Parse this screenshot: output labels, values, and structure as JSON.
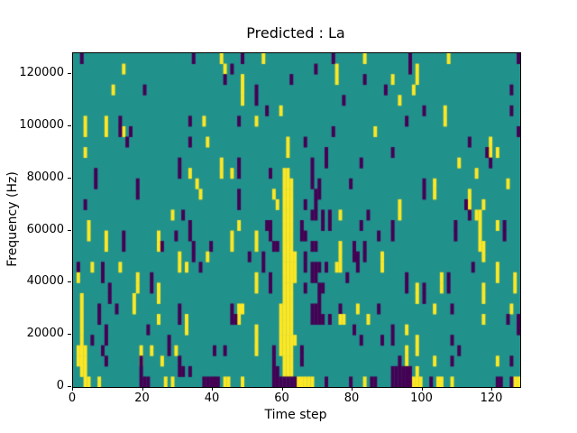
{
  "title": "Predicted : La",
  "chart_data": {
    "type": "heatmap",
    "title": "Predicted : La",
    "xlabel": "Time step",
    "ylabel": "Frequency (Hz)",
    "x_range": [
      0,
      128
    ],
    "y_range": [
      0,
      128000
    ],
    "x_ticks": [
      0,
      20,
      40,
      60,
      80,
      100,
      120
    ],
    "x_tick_labels": [
      "0",
      "20",
      "40",
      "60",
      "80",
      "100",
      "120"
    ],
    "y_ticks": [
      0,
      20000,
      40000,
      60000,
      80000,
      100000,
      120000
    ],
    "y_tick_labels": [
      "0",
      "20000",
      "40000",
      "60000",
      "80000",
      "100000",
      "120000"
    ],
    "grid_cols": 128,
    "grid_rows": 32,
    "legend": "none",
    "grid_lines": false,
    "colors": {
      "mid": "#21918c",
      "high": "#fde725",
      "low": "#440154",
      "frame": "#000000",
      "background": "#ffffff"
    },
    "value_meaning": {
      "mid": 0,
      "high": 1,
      "low": -1
    },
    "rows_top_to_bottom": [
      {
        "y": [
          42,
          54,
          83,
          107
        ],
        "d": [
          2,
          34,
          48,
          74,
          96,
          127
        ]
      },
      {
        "y": [
          14,
          43,
          75,
          98
        ],
        "d": [
          45,
          69,
          96
        ]
      },
      {
        "y": [
          48,
          75,
          91,
          98
        ],
        "d": [
          43,
          62,
          83
        ]
      },
      {
        "y": [
          11,
          48,
          97
        ],
        "d": [
          20,
          52,
          89,
          125
        ]
      },
      {
        "y": [
          48,
          93
        ],
        "d": [
          52,
          77
        ]
      },
      {
        "y": [
          59,
          106
        ],
        "d": [
          55,
          100,
          125
        ]
      },
      {
        "y": [
          3,
          9,
          37,
          52,
          106
        ],
        "d": [
          13,
          33,
          47,
          95
        ]
      },
      {
        "y": [
          3,
          9,
          14,
          86
        ],
        "d": [
          13,
          16,
          74,
          127
        ]
      },
      {
        "y": [
          38,
          61,
          119
        ],
        "d": [
          15,
          33,
          66,
          113
        ]
      },
      {
        "y": [
          3,
          61,
          119,
          121
        ],
        "d": [
          72,
          91,
          118
        ]
      },
      {
        "y": [
          42,
          110
        ],
        "d": [
          30,
          47,
          68,
          72,
          82,
          119
        ]
      },
      {
        "y": [
          33,
          42,
          45,
          60,
          61,
          115
        ],
        "d": [
          6,
          30,
          47,
          56,
          68
        ]
      },
      {
        "y": [
          35,
          60,
          61,
          62,
          103,
          124
        ],
        "d": [
          6,
          18,
          68,
          70,
          79,
          100
        ]
      },
      {
        "y": [
          36,
          57,
          60,
          61,
          62,
          103,
          113
        ],
        "d": [
          18,
          47,
          69,
          70,
          100
        ]
      },
      {
        "y": [
          58,
          60,
          61,
          62,
          93,
          113,
          117
        ],
        "d": [
          3,
          47,
          66,
          69,
          112
        ]
      },
      {
        "y": [
          28,
          60,
          61,
          62,
          76,
          93,
          115,
          116
        ],
        "d": [
          31,
          68,
          69,
          71,
          73,
          84,
          113
        ]
      },
      {
        "y": [
          4,
          47,
          60,
          61,
          62,
          116,
          121
        ],
        "d": [
          33,
          55,
          56,
          65,
          71,
          73,
          82,
          91,
          109,
          123
        ]
      },
      {
        "y": [
          4,
          9,
          24,
          45,
          52,
          60,
          61,
          62,
          116
        ],
        "d": [
          14,
          29,
          33,
          56,
          65,
          66,
          87,
          91,
          109,
          123
        ]
      },
      {
        "y": [
          9,
          24,
          45,
          52,
          60,
          61,
          62,
          76,
          116,
          117
        ],
        "d": [
          14,
          25,
          34,
          39,
          57,
          58,
          68,
          69,
          80,
          83
        ]
      },
      {
        "y": [
          30,
          38,
          60,
          61,
          62,
          63,
          76,
          88,
          117
        ],
        "d": [
          34,
          50,
          54,
          66,
          80,
          81,
          83
        ]
      },
      {
        "y": [
          5,
          13,
          30,
          32,
          60,
          61,
          62,
          63,
          75,
          76,
          88,
          121
        ],
        "d": [
          1,
          8,
          36,
          54,
          66,
          68,
          69,
          70,
          72,
          81,
          114
        ]
      },
      {
        "y": [
          1,
          18,
          52,
          60,
          61,
          62,
          63,
          105,
          121,
          126
        ],
        "d": [
          8,
          22,
          56,
          68,
          69,
          78,
          95,
          107
        ]
      },
      {
        "y": [
          18,
          24,
          52,
          60,
          61,
          62,
          98,
          105,
          117,
          126
        ],
        "d": [
          10,
          22,
          56,
          66,
          70,
          71,
          95,
          100,
          107
        ]
      },
      {
        "y": [
          2,
          17,
          24,
          60,
          61,
          62,
          98,
          117
        ],
        "d": [
          10,
          70,
          100
        ]
      },
      {
        "y": [
          2,
          17,
          47,
          48,
          59,
          60,
          61,
          62,
          81,
          103,
          125
        ],
        "d": [
          7,
          12,
          30,
          45,
          68,
          69,
          70,
          76,
          87,
          108
        ]
      },
      {
        "y": [
          2,
          24,
          32,
          47,
          59,
          60,
          61,
          62,
          76,
          77,
          84,
          117
        ],
        "d": [
          7,
          30,
          45,
          46,
          68,
          69,
          70,
          71,
          73,
          124,
          127
        ]
      },
      {
        "y": [
          2,
          32,
          52,
          59,
          60,
          61,
          62,
          95
        ],
        "d": [
          9,
          21,
          80,
          91,
          127
        ]
      },
      {
        "y": [
          2,
          52,
          59,
          60,
          61,
          62,
          63,
          98
        ],
        "d": [
          5,
          9,
          27,
          82,
          88,
          91,
          108
        ]
      },
      {
        "y": [
          1,
          2,
          3,
          19,
          22,
          29,
          52,
          59,
          60,
          61,
          62,
          95,
          98
        ],
        "d": [
          8,
          27,
          40,
          43,
          57,
          65,
          110
        ]
      },
      {
        "y": [
          1,
          2,
          3,
          19,
          25,
          60,
          61,
          62,
          95,
          103,
          121
        ],
        "d": [
          9,
          19,
          30,
          57,
          65,
          93,
          108,
          125
        ]
      },
      {
        "y": [
          2,
          3,
          60,
          61,
          62,
          98
        ],
        "d": [
          19,
          30,
          31,
          33,
          57,
          58,
          91,
          92,
          93,
          94,
          95,
          96
        ]
      },
      {
        "y": [
          3,
          4,
          7,
          26,
          28,
          43,
          44,
          48,
          64,
          65,
          66,
          67,
          68,
          83,
          97,
          98,
          99,
          104,
          105,
          108,
          126,
          127
        ],
        "d": [
          19,
          20,
          21,
          37,
          38,
          39,
          40,
          41,
          57,
          58,
          59,
          60,
          61,
          62,
          63,
          72,
          79,
          85,
          86,
          91,
          92,
          93,
          94,
          95,
          96,
          102,
          121,
          122,
          125
        ]
      }
    ]
  }
}
